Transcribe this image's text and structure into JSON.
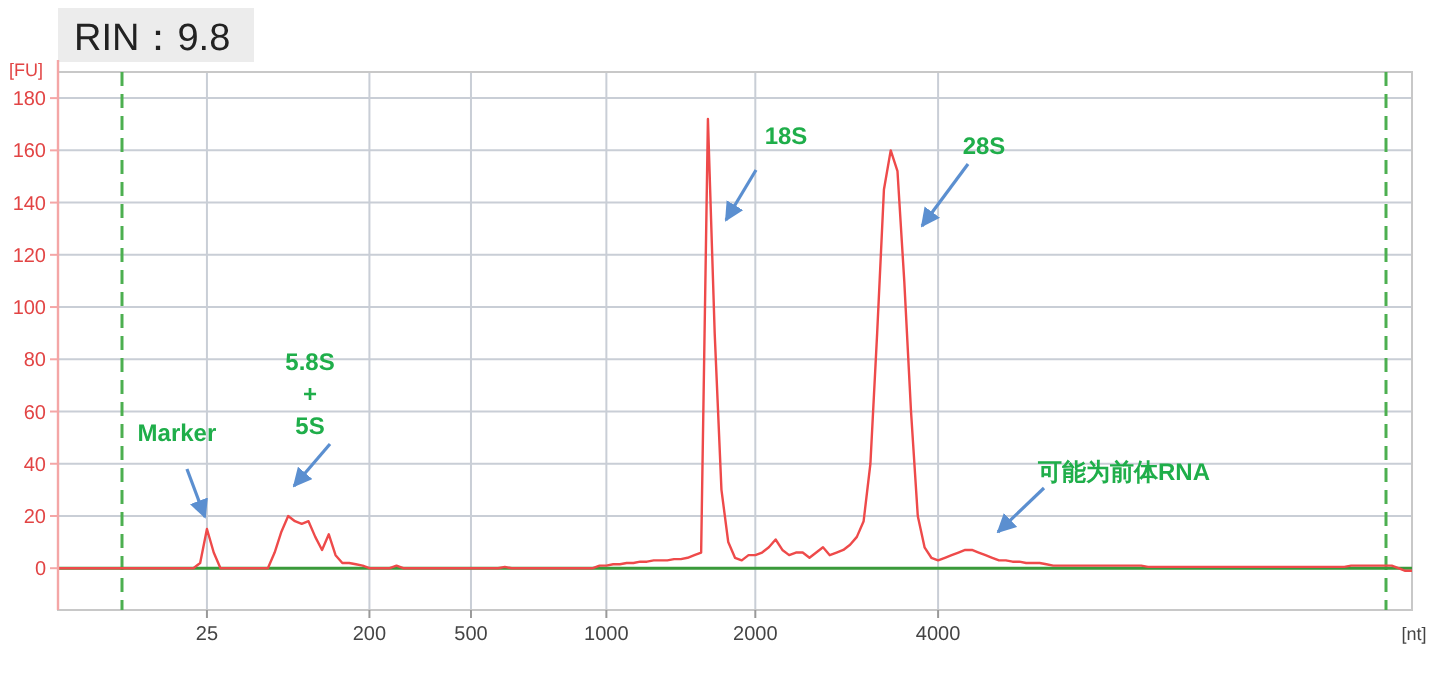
{
  "chart_data": {
    "type": "line",
    "title": "RIN：9.8",
    "xlabel": "[nt]",
    "ylabel": "[FU]",
    "categories": [
      null,
      null,
      null,
      null,
      null,
      null,
      null,
      null,
      null,
      null,
      null,
      null,
      null,
      null,
      null,
      null,
      null,
      null,
      null,
      null,
      null,
      null,
      "25",
      null,
      null,
      null,
      null,
      null,
      null,
      null,
      null,
      null,
      null,
      null,
      null,
      null,
      null,
      null,
      null,
      null,
      null,
      null,
      null,
      null,
      null,
      null,
      "200",
      null,
      null,
      null,
      null,
      null,
      null,
      null,
      null,
      null,
      null,
      null,
      null,
      null,
      null,
      "500",
      null,
      null,
      null,
      null,
      null,
      null,
      null,
      null,
      null,
      null,
      null,
      null,
      null,
      null,
      null,
      null,
      null,
      null,
      null,
      "1000",
      null,
      null,
      null,
      null,
      null,
      null,
      null,
      null,
      null,
      null,
      null,
      null,
      null,
      null,
      null,
      null,
      null,
      null,
      null,
      null,
      null,
      "2000",
      null,
      null,
      null,
      null,
      null,
      null,
      null,
      null,
      null,
      null,
      null,
      null,
      null,
      null,
      null,
      null,
      null,
      null,
      null,
      null,
      null,
      null,
      null,
      null,
      null,
      null,
      "4000",
      null,
      null,
      null,
      null,
      null,
      null,
      null,
      null,
      null,
      null,
      null,
      null,
      null,
      null,
      null,
      null,
      null,
      null,
      null,
      null,
      null,
      null,
      null,
      null,
      null,
      null,
      null,
      null,
      null,
      null,
      null,
      null,
      null,
      null,
      null,
      null,
      null,
      null,
      null,
      null,
      null,
      null,
      null,
      null,
      null,
      null,
      null,
      null,
      null,
      null,
      null,
      null,
      null,
      null,
      null,
      null,
      null,
      null,
      null,
      null,
      null,
      null,
      null,
      null,
      null,
      null,
      null,
      null,
      null,
      null
    ],
    "series": [
      {
        "color": "#ee4a4a",
        "values": [
          0,
          0,
          0,
          0,
          0,
          0,
          0,
          0,
          0,
          0,
          0,
          0,
          0,
          0,
          0,
          0,
          0,
          0,
          0,
          0,
          0,
          2,
          15,
          6,
          0,
          0,
          0,
          0,
          0,
          0,
          0,
          0,
          6,
          14,
          20,
          18,
          17,
          18,
          12,
          7,
          13,
          5,
          2,
          2,
          1.5,
          1,
          0,
          0,
          0,
          0,
          1,
          0,
          0,
          0,
          0,
          0,
          0,
          0,
          0,
          0,
          0,
          0,
          0,
          0,
          0,
          0,
          0.5,
          0,
          0,
          0,
          0,
          0,
          0,
          0,
          0,
          0,
          0,
          0,
          0,
          0,
          1,
          1,
          1.5,
          1.5,
          2,
          2,
          2.5,
          2.5,
          3,
          3,
          3,
          3.5,
          3.5,
          4,
          5,
          6,
          172,
          90,
          30,
          10,
          4,
          3,
          5,
          5,
          6,
          8,
          11,
          7,
          5,
          6,
          6,
          4,
          6,
          8,
          5,
          6,
          7,
          9,
          12,
          18,
          40,
          90,
          145,
          160,
          152,
          110,
          60,
          20,
          8,
          4,
          3,
          4,
          5,
          6,
          7,
          7,
          6,
          5,
          4,
          3,
          3,
          2.5,
          2.5,
          2,
          2,
          2,
          1.5,
          1,
          1,
          1,
          1,
          1,
          1,
          1,
          1,
          1,
          1,
          1,
          1,
          1,
          1,
          0.5,
          0.5,
          0.5,
          0.5,
          0.5,
          0.5,
          0.5,
          0.5,
          0.5,
          0.5,
          0.5,
          0.5,
          0.5,
          0.5,
          0.5,
          0.5,
          0.5,
          0.5,
          0.5,
          0.5,
          0.5,
          0.5,
          0.5,
          0.5,
          0.5,
          0.5,
          0.5,
          0.5,
          0.5,
          0.5,
          1,
          1,
          1,
          1,
          1,
          1,
          1,
          0,
          -1,
          -1
        ]
      }
    ],
    "ylim": [
      -16,
      190
    ],
    "yticks": [
      0,
      20,
      40,
      60,
      80,
      100,
      120,
      140,
      160,
      180
    ],
    "grid": true,
    "marker": "none",
    "line_style": "solid",
    "ref_lines": [
      {
        "axis": "y",
        "value": 0,
        "color": "#3a9a3a",
        "line_style": "solid"
      }
    ],
    "annotations": [
      {
        "text": "Marker",
        "x": "25",
        "y": 15
      },
      "5.8S\n+\n5S",
      "18S",
      "28S",
      "可能为前体RNA"
    ]
  }
}
